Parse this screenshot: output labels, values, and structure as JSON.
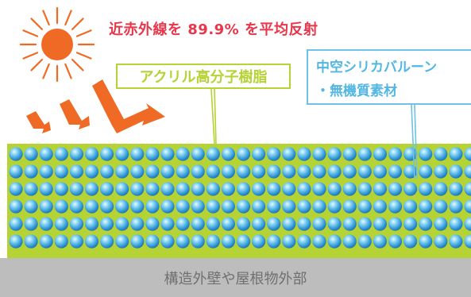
{
  "headline": "近赤外線を 89.9% を平均反射",
  "acrylic_label": "アクリル高分子樹脂",
  "balloon_label_line1": "中空シリカバルーン",
  "balloon_label_line2": "・無機質素材",
  "base_label": "構造外壁や屋根物外部",
  "colors": {
    "sun": "#ef6a24",
    "arrow": "#ef6a24",
    "headline": "#e8374a",
    "resin": "#b5d334",
    "sphere": "#3a9fdc",
    "balloon_label": "#52b7e3",
    "base": "#bdbdbd"
  }
}
